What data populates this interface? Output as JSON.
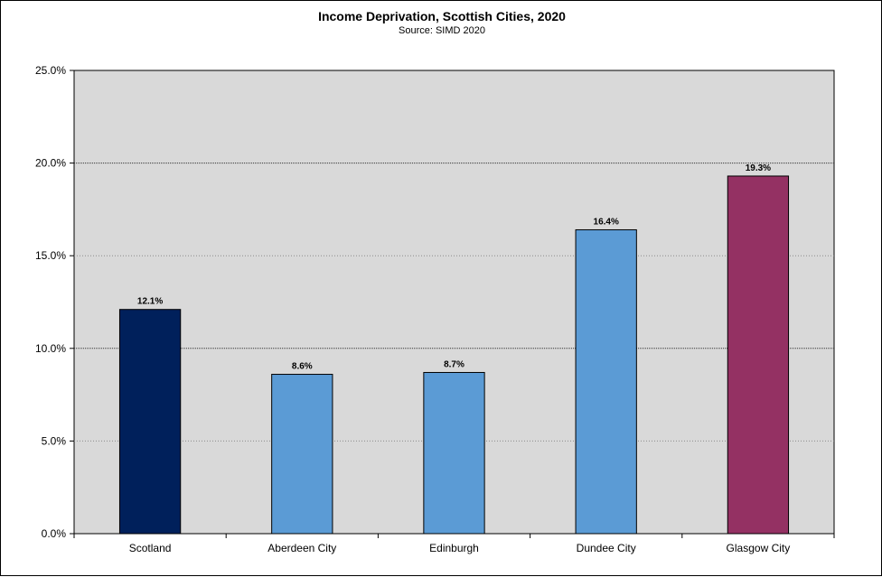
{
  "chart_data": {
    "type": "bar",
    "title": "Income Deprivation, Scottish Cities, 2020",
    "subtitle": "Source: SIMD 2020",
    "xlabel": "",
    "ylabel": "",
    "ylim": [
      0,
      25
    ],
    "y_ticks": [
      "0.0%",
      "5.0%",
      "10.0%",
      "15.0%",
      "20.0%",
      "25.0%"
    ],
    "categories": [
      "Scotland",
      "Aberdeen City",
      "Edinburgh",
      "Dundee City",
      "Glasgow City"
    ],
    "values": [
      12.1,
      8.6,
      8.7,
      16.4,
      19.3
    ],
    "data_labels": [
      "12.1%",
      "8.6%",
      "8.7%",
      "16.4%",
      "19.3%"
    ],
    "bar_colors": [
      "#00205b",
      "#5b9bd5",
      "#5b9bd5",
      "#5b9bd5",
      "#943163"
    ],
    "plot_background": "#d9d9d9",
    "grid": true
  }
}
